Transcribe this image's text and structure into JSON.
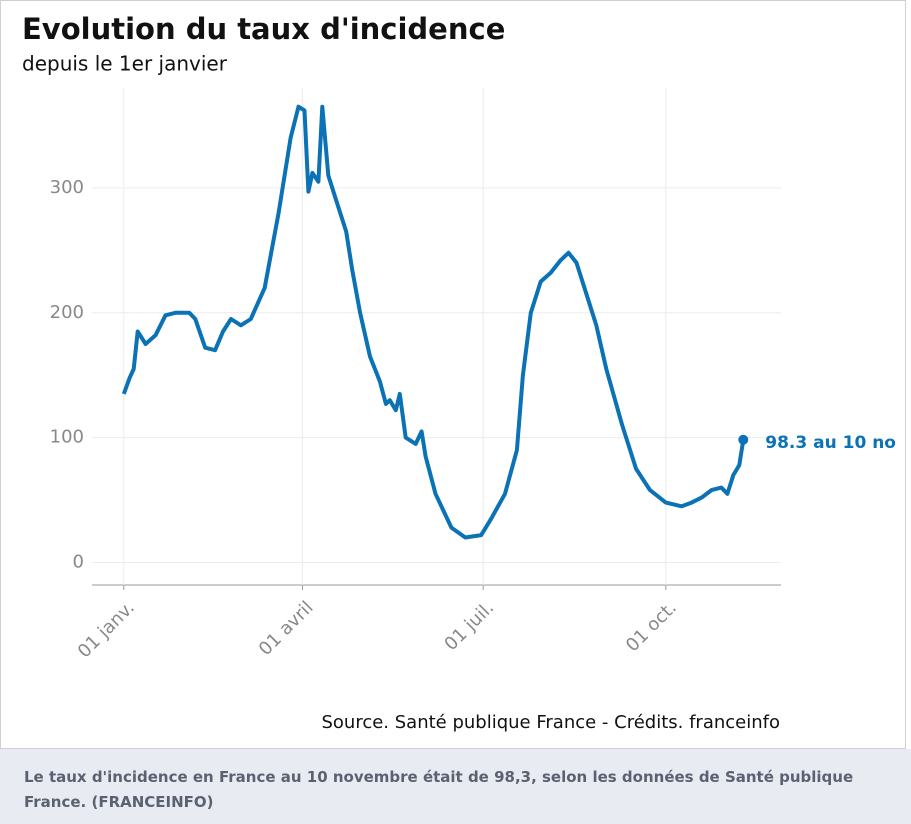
{
  "chart_data": {
    "type": "line",
    "title": "Evolution du taux d'incidence",
    "subtitle": "depuis le 1er janvier",
    "x": [
      0,
      3,
      5,
      7,
      11,
      16,
      21,
      26,
      33,
      36,
      41,
      46,
      50,
      54,
      59,
      64,
      71,
      78,
      84,
      88,
      91,
      93,
      95,
      98,
      100,
      103,
      107,
      112,
      115,
      119,
      124,
      129,
      132,
      134,
      137,
      139,
      142,
      147,
      150,
      152,
      157,
      165,
      172,
      180,
      185,
      192,
      198,
      201,
      205,
      210,
      215,
      220,
      224,
      228,
      233,
      238,
      243,
      251,
      258,
      265,
      273,
      281,
      286,
      291,
      296,
      301,
      304,
      307,
      310,
      312
    ],
    "values": [
      135,
      148,
      155,
      185,
      175,
      182,
      198,
      200,
      200,
      195,
      172,
      170,
      185,
      195,
      190,
      195,
      220,
      280,
      340,
      365,
      362,
      297,
      312,
      305,
      365,
      310,
      290,
      265,
      235,
      200,
      165,
      145,
      127,
      130,
      122,
      135,
      100,
      95,
      105,
      85,
      55,
      28,
      20,
      22,
      35,
      55,
      90,
      150,
      200,
      225,
      232,
      242,
      248,
      240,
      215,
      190,
      155,
      110,
      75,
      58,
      48,
      45,
      48,
      52,
      58,
      60,
      55,
      70,
      78,
      98.3
    ],
    "color": "#0a72b5",
    "xlim": [
      -16,
      331
    ],
    "ylim": [
      -18,
      380
    ],
    "xticks": [
      {
        "value": 0,
        "label": "01 janv."
      },
      {
        "value": 90,
        "label": "01 avril"
      },
      {
        "value": 181,
        "label": "01 juil."
      },
      {
        "value": 273,
        "label": "01 oct."
      }
    ],
    "yticks": [
      0,
      100,
      200,
      300
    ],
    "grid": true,
    "annotation": "98.3 au 10 no",
    "source": "Source. Santé publique France - Crédits. franceinfo"
  },
  "caption": "Le taux d'incidence en France au 10 novembre était de 98,3, selon les données de Santé publique France. (FRANCEINFO)"
}
